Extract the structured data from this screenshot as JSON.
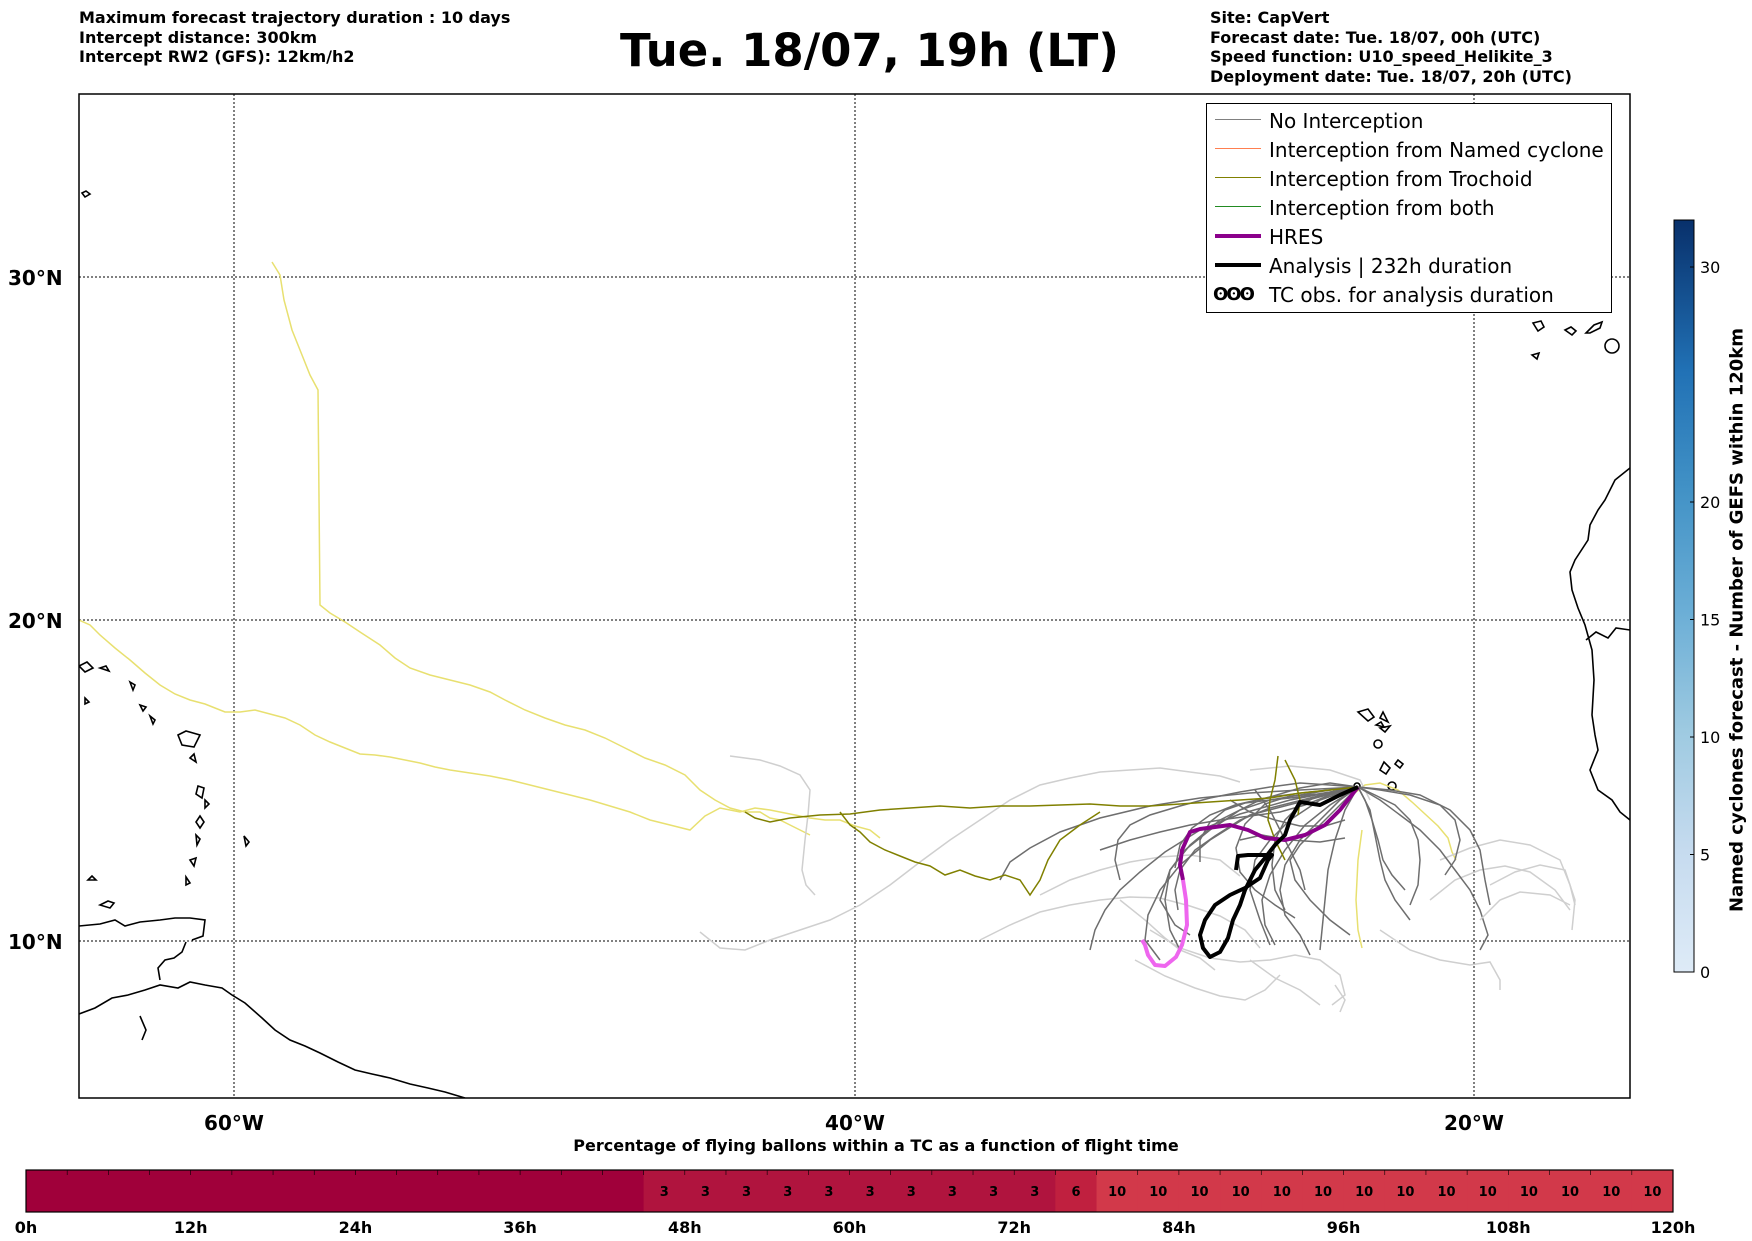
{
  "header": {
    "left": [
      "Maximum forecast trajectory duration : 10 days",
      "Intercept distance: 300km",
      "Intercept RW2 (GFS):  12km/h2"
    ],
    "title": "Tue. 18/07, 19h (LT)",
    "right": [
      "Site: CapVert",
      "Forecast date: Tue. 18/07, 00h (UTC)",
      "Speed function: U10_speed_Helikite_3",
      "Deployment date: Tue. 18/07, 20h (UTC)"
    ]
  },
  "map": {
    "lat_labels": [
      "30°N",
      "20°N",
      "10°N"
    ],
    "lon_labels": [
      "60°W",
      "40°W",
      "20°W"
    ],
    "lat_range": [
      5.5,
      35
    ],
    "lon_range": [
      -65,
      -15
    ],
    "grid": "dotted"
  },
  "legend": {
    "items": [
      {
        "label": "No Interception",
        "color": "#808080"
      },
      {
        "label": "Interception from Named cyclone",
        "color": "#ff7f50"
      },
      {
        "label": "Interception from Trochoid",
        "color": "#808000"
      },
      {
        "label": "Interception from both",
        "color": "#228b22"
      },
      {
        "label": "HRES",
        "color": "#8b008b"
      },
      {
        "label": "Analysis | 232h duration",
        "color": "#000000"
      },
      {
        "label": "TC obs. for analysis duration",
        "color": "#000000",
        "symbol": "ʘʘʘ"
      }
    ],
    "placement": "top-right"
  },
  "colorbar": {
    "title": "Named cyclones forecast - Number of GEFS within 120km",
    "ticks": [
      "0",
      "5",
      "10",
      "15",
      "20",
      "30"
    ],
    "range": [
      0,
      32
    ]
  },
  "bottom_bar": {
    "title": "Percentage of flying ballons within a TC as a function of flight time",
    "time_labels": [
      "0h",
      "12h",
      "24h",
      "36h",
      "48h",
      "60h",
      "72h",
      "84h",
      "96h",
      "108h",
      "120h"
    ],
    "cell_values": [
      "3",
      "3",
      "3",
      "3",
      "3",
      "3",
      "3",
      "3",
      "3",
      "3",
      "6",
      "10",
      "10",
      "10",
      "10",
      "10",
      "10",
      "10",
      "10",
      "10",
      "10",
      "10",
      "10",
      "10",
      "10"
    ]
  }
}
